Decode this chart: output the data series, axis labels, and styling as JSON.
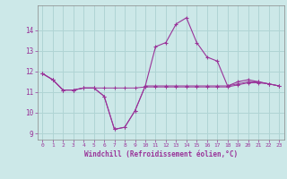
{
  "xlabel": "Windchill (Refroidissement éolien,°C)",
  "background_color": "#cce8e8",
  "grid_color": "#b0d4d4",
  "line_color": "#993399",
  "x_hours": [
    0,
    1,
    2,
    3,
    4,
    5,
    6,
    7,
    8,
    9,
    10,
    11,
    12,
    13,
    14,
    15,
    16,
    17,
    18,
    19,
    20,
    21,
    22,
    23
  ],
  "series1": [
    11.9,
    11.6,
    11.1,
    11.1,
    11.2,
    11.2,
    10.8,
    9.2,
    9.3,
    10.1,
    11.3,
    13.2,
    13.4,
    14.3,
    14.6,
    13.4,
    12.7,
    12.5,
    11.3,
    11.5,
    11.6,
    11.5,
    11.4,
    11.3
  ],
  "series2": [
    11.9,
    11.6,
    11.1,
    11.1,
    11.2,
    11.2,
    10.8,
    9.2,
    9.3,
    10.1,
    11.3,
    11.3,
    11.3,
    11.3,
    11.3,
    11.3,
    11.3,
    11.3,
    11.3,
    11.4,
    11.5,
    11.5,
    11.4,
    11.3
  ],
  "series3": [
    11.9,
    11.6,
    11.1,
    11.1,
    11.2,
    11.2,
    11.2,
    11.2,
    11.2,
    11.2,
    11.25,
    11.25,
    11.25,
    11.25,
    11.25,
    11.25,
    11.25,
    11.25,
    11.25,
    11.35,
    11.45,
    11.45,
    11.4,
    11.3
  ],
  "ylim": [
    8.7,
    15.2
  ],
  "yticks": [
    9,
    10,
    11,
    12,
    13,
    14
  ],
  "xtick_labels": [
    "0",
    "1",
    "2",
    "3",
    "4",
    "5",
    "6",
    "7",
    "8",
    "9",
    "10",
    "11",
    "12",
    "13",
    "14",
    "15",
    "16",
    "17",
    "18",
    "19",
    "20",
    "21",
    "22",
    "23"
  ]
}
